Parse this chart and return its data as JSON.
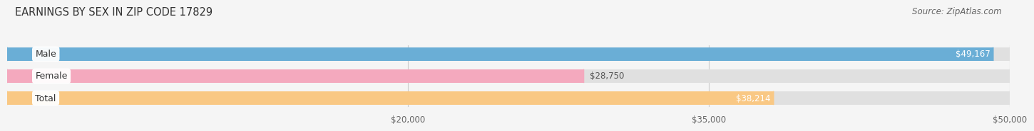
{
  "title": "EARNINGS BY SEX IN ZIP CODE 17829",
  "source": "Source: ZipAtlas.com",
  "categories": [
    "Male",
    "Female",
    "Total"
  ],
  "values": [
    49167,
    28750,
    38214
  ],
  "bar_colors": [
    "#6aaed6",
    "#f4a9be",
    "#f9c884"
  ],
  "label_colors": [
    "white",
    "#555555",
    "white"
  ],
  "bar_labels": [
    "$49,167",
    "$28,750",
    "$38,214"
  ],
  "x_min": 0,
  "x_max": 50000,
  "x_axis_min": 20000,
  "x_ticks": [
    20000,
    35000,
    50000
  ],
  "x_tick_labels": [
    "$20,000",
    "$35,000",
    "$50,000"
  ],
  "background_color": "#f5f5f5",
  "bar_background_color": "#e0e0e0",
  "title_fontsize": 10.5,
  "source_fontsize": 8.5,
  "tick_fontsize": 8.5,
  "bar_label_fontsize": 8.5,
  "category_fontsize": 9
}
